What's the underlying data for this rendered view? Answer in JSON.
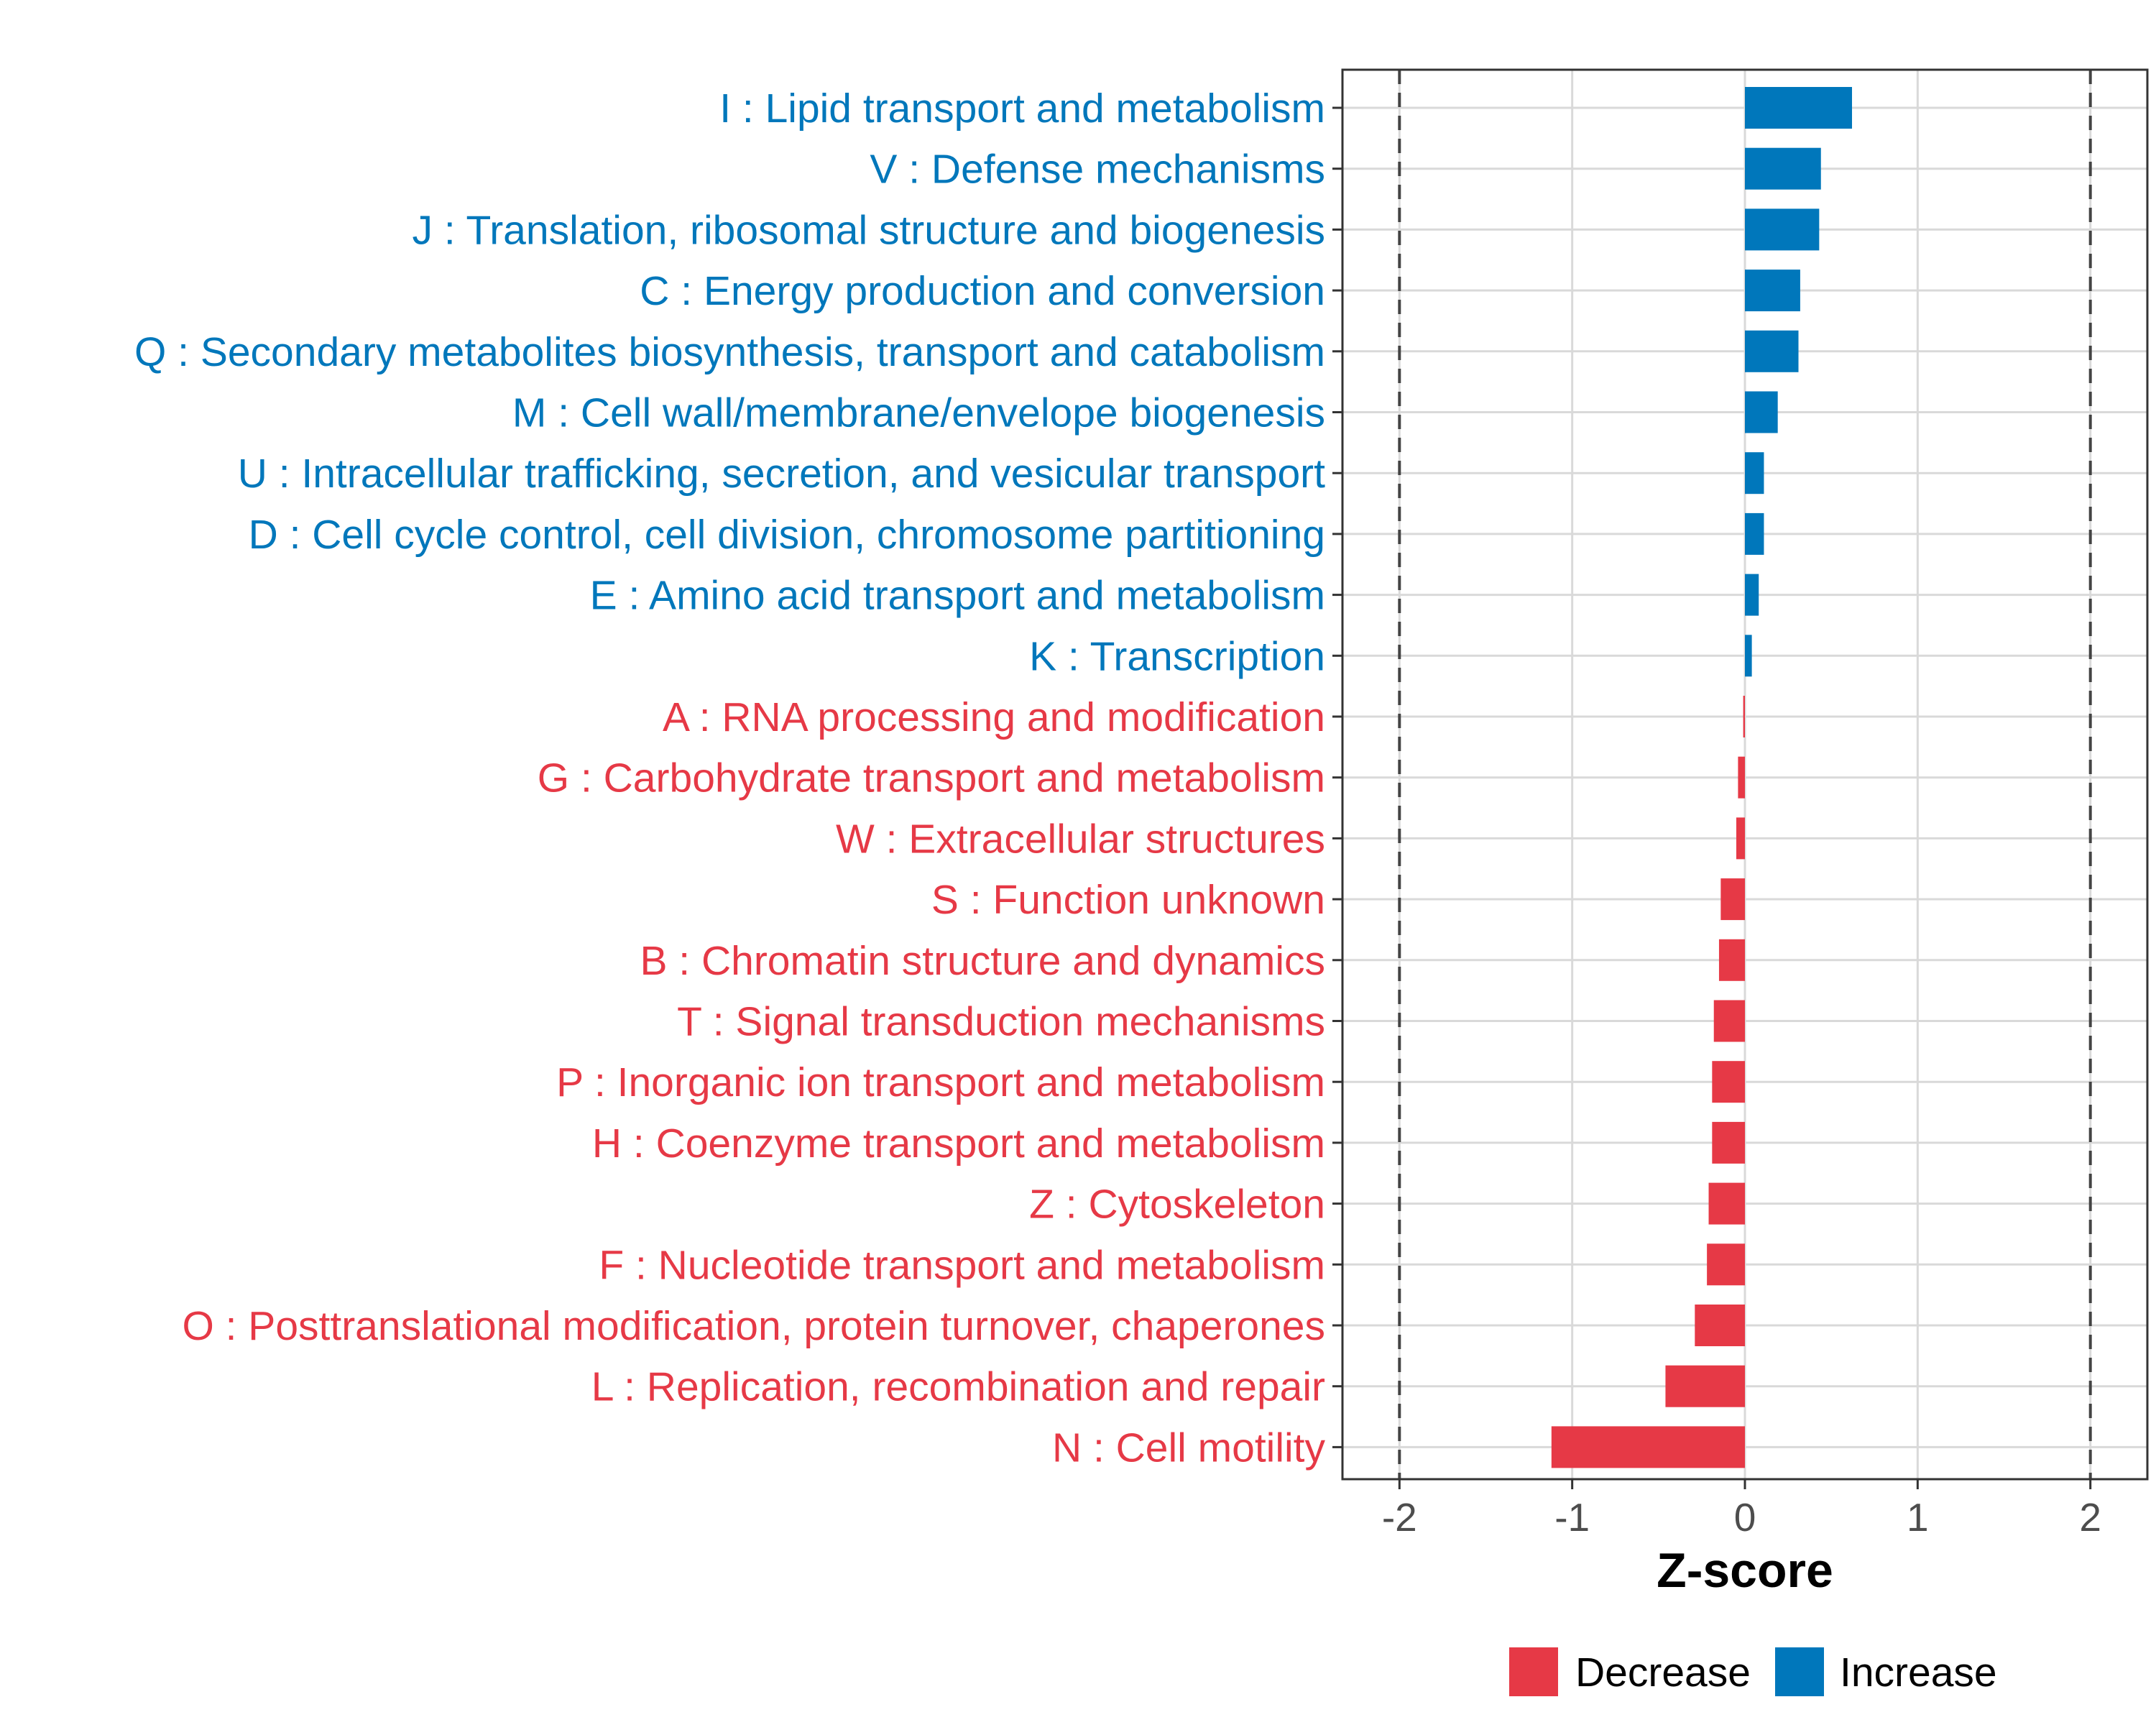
{
  "colors": {
    "increase": "#0077BB",
    "decrease": "#E63946",
    "grid": "#D9D9D9",
    "panel_border": "#333333",
    "threshold_line": "#444444"
  },
  "chart_data": {
    "type": "bar",
    "orientation": "horizontal",
    "xlabel": "Z-score",
    "ylabel": "",
    "xlim": [
      -2.33,
      2.33
    ],
    "xticks": [
      -2,
      -1,
      0,
      1,
      2
    ],
    "xtick_labels": [
      "-2",
      "-1",
      "0",
      "1",
      "2"
    ],
    "threshold_lines": [
      -2,
      2
    ],
    "grid": true,
    "categories": [
      "I : Lipid transport and metabolism",
      "V : Defense mechanisms",
      "J : Translation, ribosomal structure and biogenesis",
      "C : Energy production and conversion",
      "Q : Secondary metabolites biosynthesis, transport and catabolism",
      "M : Cell wall/membrane/envelope biogenesis",
      "U : Intracellular trafficking, secretion, and vesicular transport",
      "D : Cell cycle control, cell division, chromosome partitioning",
      "E : Amino acid transport and metabolism",
      "K : Transcription",
      "A : RNA processing and modification",
      "G : Carbohydrate transport and metabolism",
      "W : Extracellular structures",
      "S : Function unknown",
      "B : Chromatin structure and dynamics",
      "T : Signal transduction mechanisms",
      "P : Inorganic ion transport and metabolism",
      "H : Coenzyme transport and metabolism",
      "Z : Cytoskeleton",
      "F : Nucleotide transport and metabolism",
      "O : Posttranslational modification, protein turnover, chaperones",
      "L : Replication, recombination and repair",
      "N : Cell motility"
    ],
    "values": [
      0.62,
      0.44,
      0.43,
      0.32,
      0.31,
      0.19,
      0.11,
      0.11,
      0.08,
      0.04,
      -0.01,
      -0.04,
      -0.05,
      -0.14,
      -0.15,
      -0.18,
      -0.19,
      -0.19,
      -0.21,
      -0.22,
      -0.29,
      -0.46,
      -1.12
    ],
    "groups": [
      "Increase",
      "Increase",
      "Increase",
      "Increase",
      "Increase",
      "Increase",
      "Increase",
      "Increase",
      "Increase",
      "Increase",
      "Decrease",
      "Decrease",
      "Decrease",
      "Decrease",
      "Decrease",
      "Decrease",
      "Decrease",
      "Decrease",
      "Decrease",
      "Decrease",
      "Decrease",
      "Decrease",
      "Decrease"
    ],
    "legend": {
      "placement": "bottom",
      "entries": [
        {
          "label": "Decrease",
          "color": "#E63946"
        },
        {
          "label": "Increase",
          "color": "#0077BB"
        }
      ]
    }
  }
}
